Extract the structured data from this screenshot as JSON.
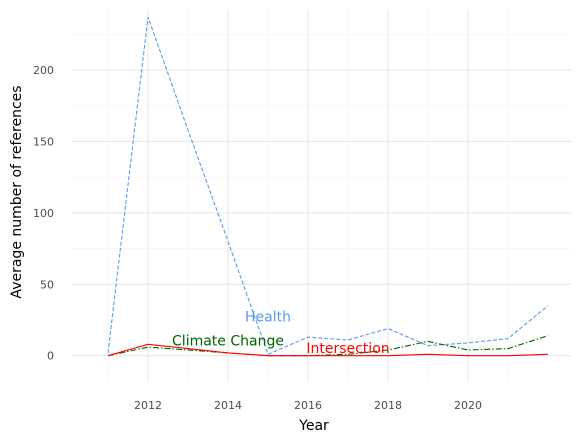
{
  "chart_data": {
    "type": "line",
    "title": "",
    "xlabel": "Year",
    "ylabel": "Average number of references",
    "x": [
      2011,
      2012,
      2013,
      2014,
      2015,
      2016,
      2017,
      2018,
      2019,
      2020,
      2021,
      2022
    ],
    "xlim": [
      2010.1,
      2022.6
    ],
    "ylim": [
      -17,
      242
    ],
    "x_ticks": [
      2012,
      2014,
      2016,
      2018,
      2020
    ],
    "y_ticks": [
      0,
      50,
      100,
      150,
      200
    ],
    "grid": true,
    "legend": "none",
    "series": [
      {
        "name": "Health",
        "color": "#5b9bea",
        "dash": "dashed",
        "values": [
          2,
          237,
          158,
          80,
          1,
          13,
          11,
          19,
          7,
          9,
          12,
          35
        ],
        "label_at": [
          2015.0,
          24
        ]
      },
      {
        "name": "Climate Change",
        "color": "#006400",
        "dash": "dashdot",
        "values": [
          0,
          6,
          4,
          2,
          0,
          0,
          1,
          4,
          10,
          4,
          5,
          14
        ],
        "label_at": [
          2014.0,
          7
        ]
      },
      {
        "name": "Intersection",
        "color": "#ff0000",
        "dash": "solid",
        "values": [
          0,
          8,
          5,
          2,
          0,
          0,
          0,
          0,
          1,
          0,
          0,
          1
        ],
        "label_at": [
          2017.0,
          2
        ]
      }
    ]
  }
}
